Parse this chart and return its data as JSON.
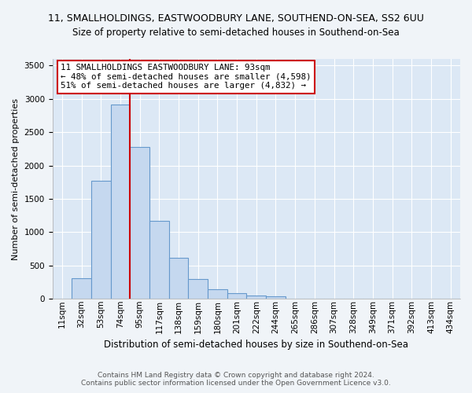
{
  "title_line1": "11, SMALLHOLDINGS, EASTWOODBURY LANE, SOUTHEND-ON-SEA, SS2 6UU",
  "title_line2": "Size of property relative to semi-detached houses in Southend-on-Sea",
  "xlabel": "Distribution of semi-detached houses by size in Southend-on-Sea",
  "ylabel": "Number of semi-detached properties",
  "footnote1": "Contains HM Land Registry data © Crown copyright and database right 2024.",
  "footnote2": "Contains public sector information licensed under the Open Government Licence v3.0.",
  "annotation_title": "11 SMALLHOLDINGS EASTWOODBURY LANE: 93sqm",
  "annotation_line1": "← 48% of semi-detached houses are smaller (4,598)",
  "annotation_line2": "51% of semi-detached houses are larger (4,832) →",
  "categories": [
    "11sqm",
    "32sqm",
    "53sqm",
    "74sqm",
    "95sqm",
    "117sqm",
    "138sqm",
    "159sqm",
    "180sqm",
    "201sqm",
    "222sqm",
    "244sqm",
    "265sqm",
    "286sqm",
    "307sqm",
    "328sqm",
    "349sqm",
    "371sqm",
    "392sqm",
    "413sqm",
    "434sqm"
  ],
  "bar_values": [
    5,
    310,
    1770,
    2920,
    2280,
    1170,
    610,
    295,
    145,
    80,
    50,
    40,
    5,
    0,
    0,
    0,
    0,
    0,
    0,
    0,
    0
  ],
  "bar_color": "#c5d8ef",
  "bar_edge_color": "#6699cc",
  "vline_color": "#cc0000",
  "vline_position": 4,
  "ylim": [
    0,
    3600
  ],
  "yticks": [
    0,
    500,
    1000,
    1500,
    2000,
    2500,
    3000,
    3500
  ],
  "background_color": "#dce8f5",
  "grid_color": "#ffffff",
  "annotation_box_edge": "#cc0000",
  "annotation_box_face": "#ffffff",
  "title_fontsize": 9,
  "subtitle_fontsize": 8.5,
  "ylabel_fontsize": 8,
  "xlabel_fontsize": 8.5,
  "tick_fontsize": 7.5,
  "footnote_fontsize": 6.5
}
